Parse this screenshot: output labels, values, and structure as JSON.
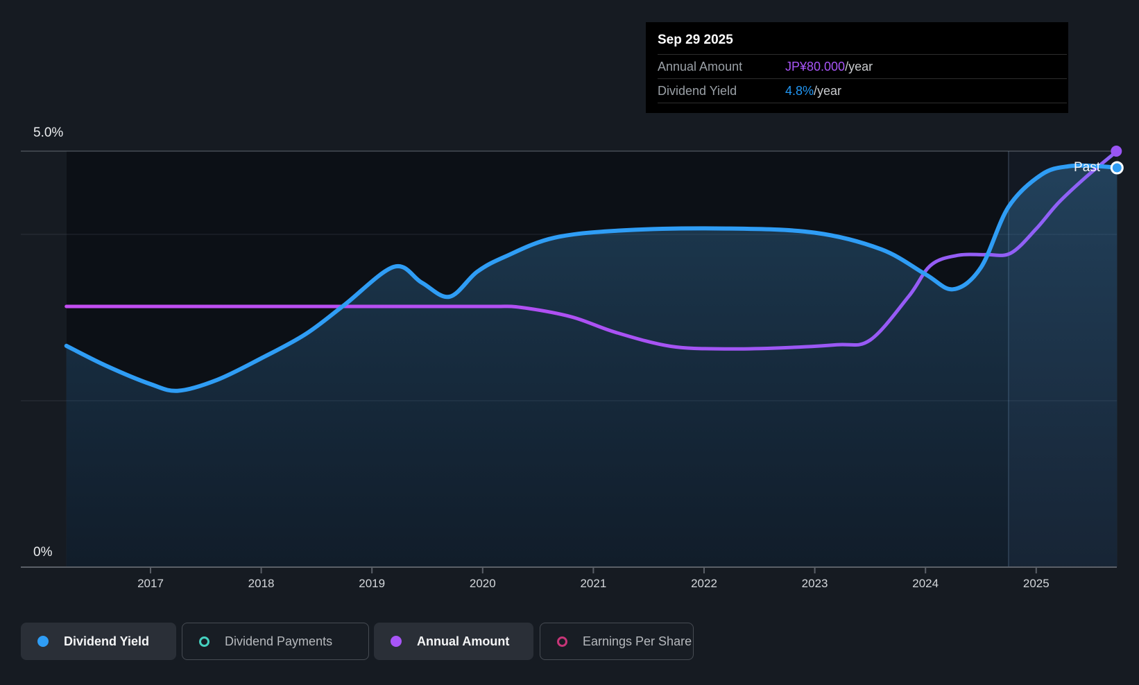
{
  "tooltip": {
    "date": "Sep 29 2025",
    "rows": [
      {
        "label": "Annual Amount",
        "value": "JP¥80.000",
        "suffix": "/year",
        "value_color": "#a855f7"
      },
      {
        "label": "Dividend Yield",
        "value": "4.8%",
        "suffix": "/year",
        "value_color": "#2196f3"
      }
    ]
  },
  "axis": {
    "y_top_label": "5.0%",
    "y_bottom_label": "0%",
    "years": [
      "2017",
      "2018",
      "2019",
      "2020",
      "2021",
      "2022",
      "2023",
      "2024",
      "2025"
    ]
  },
  "past_label": "Past",
  "legend": [
    {
      "label": "Dividend Yield",
      "marker": "filled",
      "color": "#2f9df5",
      "active": true
    },
    {
      "label": "Dividend Payments",
      "marker": "ring",
      "color": "#45d0bf",
      "active": false
    },
    {
      "label": "Annual Amount",
      "marker": "filled",
      "color": "#a855f7",
      "active": true
    },
    {
      "label": "Earnings Per Share",
      "marker": "ring",
      "color": "#c73578",
      "active": false
    }
  ],
  "chart_data": {
    "type": "area",
    "x_range_years": [
      2016.24,
      2025.75
    ],
    "x_tick_years": [
      2017,
      2018,
      2019,
      2020,
      2021,
      2022,
      2023,
      2024,
      2025
    ],
    "yield_axis": {
      "min_percent": 0,
      "max_percent": 5.0,
      "gridlines_percent": [
        5.0,
        4.0,
        2.0,
        0
      ]
    },
    "past_divider_year": 2024.75,
    "legend_position": "bottom",
    "series": [
      {
        "name": "Dividend Yield",
        "unit": "%",
        "color": "#2f9df5",
        "style": "line-with-area",
        "points": [
          [
            2016.24,
            2.66
          ],
          [
            2016.6,
            2.42
          ],
          [
            2017.0,
            2.2
          ],
          [
            2017.25,
            2.12
          ],
          [
            2017.6,
            2.25
          ],
          [
            2018.0,
            2.51
          ],
          [
            2018.4,
            2.8
          ],
          [
            2018.75,
            3.15
          ],
          [
            2019.2,
            3.61
          ],
          [
            2019.45,
            3.42
          ],
          [
            2019.7,
            3.25
          ],
          [
            2019.95,
            3.55
          ],
          [
            2020.2,
            3.73
          ],
          [
            2020.65,
            3.96
          ],
          [
            2021.3,
            4.05
          ],
          [
            2022.2,
            4.07
          ],
          [
            2023.0,
            4.02
          ],
          [
            2023.6,
            3.82
          ],
          [
            2024.0,
            3.52
          ],
          [
            2024.25,
            3.34
          ],
          [
            2024.5,
            3.6
          ],
          [
            2024.75,
            4.33
          ],
          [
            2025.05,
            4.72
          ],
          [
            2025.3,
            4.82
          ],
          [
            2025.55,
            4.82
          ],
          [
            2025.73,
            4.8
          ]
        ],
        "end_point": {
          "date": "Sep 29 2025",
          "value": 4.8
        }
      },
      {
        "name": "Annual Amount",
        "unit": "JP¥/year",
        "color_gradient": [
          "#c44ef2",
          "#8d63f7"
        ],
        "style": "line",
        "points": [
          [
            2016.24,
            50
          ],
          [
            2017.5,
            50
          ],
          [
            2018.5,
            50
          ],
          [
            2019.5,
            50
          ],
          [
            2020.1,
            50
          ],
          [
            2020.35,
            49.8
          ],
          [
            2020.8,
            48
          ],
          [
            2021.2,
            45
          ],
          [
            2021.7,
            42.3
          ],
          [
            2022.2,
            41.8
          ],
          [
            2022.7,
            42.0
          ],
          [
            2023.2,
            42.6
          ],
          [
            2023.5,
            43.5
          ],
          [
            2023.85,
            52
          ],
          [
            2024.05,
            58
          ],
          [
            2024.3,
            59.9
          ],
          [
            2024.55,
            60
          ],
          [
            2024.77,
            60.3
          ],
          [
            2025.0,
            65
          ],
          [
            2025.2,
            70
          ],
          [
            2025.45,
            75
          ],
          [
            2025.73,
            80
          ]
        ],
        "end_point": {
          "date": "Sep 29 2025",
          "value": 80
        }
      },
      {
        "name": "Dividend Payments",
        "style": "hidden",
        "points": []
      },
      {
        "name": "Earnings Per Share",
        "style": "hidden",
        "points": []
      }
    ]
  }
}
